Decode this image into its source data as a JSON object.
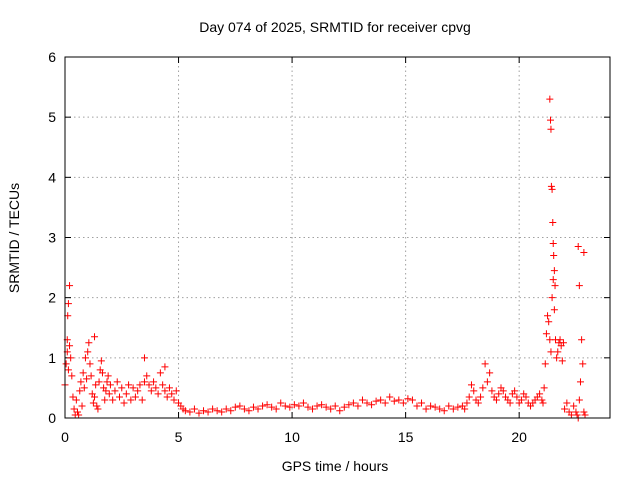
{
  "chart_data": {
    "type": "scatter",
    "title": "Day 074 of 2025, SRMTID for receiver cpvg",
    "xlabel": "GPS time / hours",
    "ylabel": "SRMTID / TECUs",
    "xlim": [
      0,
      24
    ],
    "ylim": [
      0,
      6
    ],
    "xticks": [
      0,
      5,
      10,
      15,
      20
    ],
    "yticks": [
      0,
      1,
      2,
      3,
      4,
      5,
      6
    ],
    "grid": true,
    "marker": "plus",
    "marker_color": "#ff0000",
    "series": [
      {
        "name": "SRMTID",
        "x": [
          0.0,
          0.05,
          0.1,
          0.15,
          0.2,
          0.25,
          0.3,
          0.35,
          0.4,
          0.45,
          0.5,
          0.55,
          0.6,
          0.65,
          0.7,
          0.75,
          0.8,
          0.85,
          0.9,
          0.95,
          1.0,
          1.05,
          1.1,
          1.15,
          1.2,
          1.25,
          1.3,
          1.35,
          1.4,
          1.45,
          1.5,
          1.55,
          1.6,
          1.65,
          1.7,
          1.75,
          1.8,
          1.85,
          1.9,
          1.95,
          2.0,
          2.1,
          2.2,
          2.3,
          2.4,
          2.5,
          2.6,
          2.7,
          2.8,
          2.9,
          3.0,
          3.1,
          3.2,
          3.3,
          3.4,
          3.5,
          3.6,
          3.7,
          3.8,
          3.9,
          4.0,
          4.1,
          4.2,
          4.3,
          4.4,
          4.5,
          4.6,
          4.7,
          4.8,
          4.9,
          5.0,
          5.1,
          5.2,
          5.3,
          5.5,
          5.7,
          5.9,
          6.1,
          6.3,
          6.5,
          6.7,
          6.9,
          7.1,
          7.3,
          7.5,
          7.7,
          7.9,
          8.1,
          8.3,
          8.5,
          8.7,
          8.9,
          9.1,
          9.3,
          9.5,
          9.7,
          9.9,
          10.1,
          10.3,
          10.5,
          10.7,
          10.9,
          11.1,
          11.3,
          11.5,
          11.7,
          11.9,
          12.1,
          12.3,
          12.5,
          12.7,
          12.9,
          13.1,
          13.3,
          13.5,
          13.7,
          13.9,
          14.1,
          14.3,
          14.5,
          14.7,
          14.9,
          15.1,
          15.3,
          15.5,
          15.7,
          15.9,
          16.1,
          16.3,
          16.5,
          16.7,
          16.9,
          17.1,
          17.3,
          17.5,
          17.6,
          17.7,
          17.8,
          17.9,
          18.0,
          18.1,
          18.2,
          18.3,
          18.4,
          18.5,
          18.6,
          18.7,
          18.8,
          18.9,
          19.0,
          19.1,
          19.2,
          19.3,
          19.4,
          19.5,
          19.6,
          19.7,
          19.8,
          19.9,
          20.0,
          20.1,
          20.2,
          20.3,
          20.4,
          20.5,
          20.6,
          20.7,
          20.8,
          20.9,
          21.0,
          21.05,
          21.1,
          21.15,
          21.2,
          21.25,
          21.3,
          21.35,
          21.4,
          21.45,
          21.5,
          21.55,
          21.6,
          21.65,
          21.7,
          21.75,
          21.8,
          21.85,
          21.9,
          21.95,
          22.0,
          22.1,
          22.2,
          22.3,
          22.4,
          22.5,
          22.55,
          22.6,
          22.65,
          22.7,
          22.75,
          22.8,
          22.85,
          22.9,
          0.1,
          0.12,
          0.15,
          0.2,
          1.3,
          3.5,
          4.4,
          21.35,
          21.38,
          21.4,
          21.42,
          21.45,
          21.48,
          21.5,
          21.52,
          21.55,
          21.58,
          22.6,
          22.65,
          22.85
        ],
        "y": [
          0.55,
          0.9,
          1.1,
          0.8,
          1.2,
          1.0,
          0.7,
          0.35,
          0.15,
          0.05,
          0.3,
          0.1,
          0.05,
          0.45,
          0.6,
          0.2,
          0.75,
          0.5,
          1.0,
          0.65,
          1.1,
          1.25,
          0.9,
          0.7,
          0.4,
          0.25,
          0.35,
          0.55,
          0.2,
          0.15,
          0.6,
          0.8,
          0.95,
          0.75,
          0.5,
          0.3,
          0.45,
          0.6,
          0.7,
          0.4,
          0.55,
          0.3,
          0.45,
          0.6,
          0.35,
          0.5,
          0.25,
          0.4,
          0.55,
          0.3,
          0.5,
          0.35,
          0.45,
          0.55,
          0.3,
          0.6,
          0.7,
          0.55,
          0.45,
          0.6,
          0.5,
          0.4,
          0.75,
          0.55,
          0.45,
          0.35,
          0.5,
          0.4,
          0.3,
          0.45,
          0.25,
          0.2,
          0.15,
          0.12,
          0.1,
          0.15,
          0.08,
          0.12,
          0.1,
          0.15,
          0.12,
          0.1,
          0.15,
          0.12,
          0.18,
          0.2,
          0.15,
          0.12,
          0.18,
          0.15,
          0.2,
          0.22,
          0.18,
          0.15,
          0.25,
          0.2,
          0.18,
          0.22,
          0.2,
          0.25,
          0.18,
          0.15,
          0.2,
          0.22,
          0.18,
          0.15,
          0.2,
          0.12,
          0.18,
          0.22,
          0.25,
          0.2,
          0.3,
          0.25,
          0.22,
          0.28,
          0.3,
          0.25,
          0.35,
          0.28,
          0.3,
          0.25,
          0.32,
          0.3,
          0.2,
          0.25,
          0.15,
          0.2,
          0.18,
          0.15,
          0.12,
          0.2,
          0.15,
          0.18,
          0.2,
          0.15,
          0.25,
          0.35,
          0.55,
          0.45,
          0.3,
          0.25,
          0.35,
          0.5,
          0.9,
          0.6,
          0.75,
          0.45,
          0.35,
          0.3,
          0.4,
          0.5,
          0.45,
          0.35,
          0.3,
          0.25,
          0.4,
          0.45,
          0.35,
          0.25,
          0.3,
          0.4,
          0.35,
          0.25,
          0.2,
          0.25,
          0.3,
          0.35,
          0.4,
          0.3,
          0.25,
          0.5,
          0.9,
          1.4,
          1.7,
          1.6,
          1.3,
          1.1,
          2.0,
          2.3,
          1.8,
          1.3,
          1.0,
          1.1,
          1.25,
          1.3,
          1.2,
          0.95,
          1.25,
          0.15,
          0.25,
          0.1,
          0.05,
          0.2,
          0.1,
          0.05,
          0.0,
          0.3,
          0.6,
          1.3,
          0.9,
          0.1,
          0.05,
          1.3,
          1.7,
          1.9,
          2.2,
          1.35,
          1.0,
          0.85,
          5.3,
          4.95,
          4.8,
          3.85,
          3.8,
          3.25,
          2.9,
          2.7,
          2.45,
          2.2,
          2.85,
          2.2,
          2.75
        ]
      }
    ]
  }
}
